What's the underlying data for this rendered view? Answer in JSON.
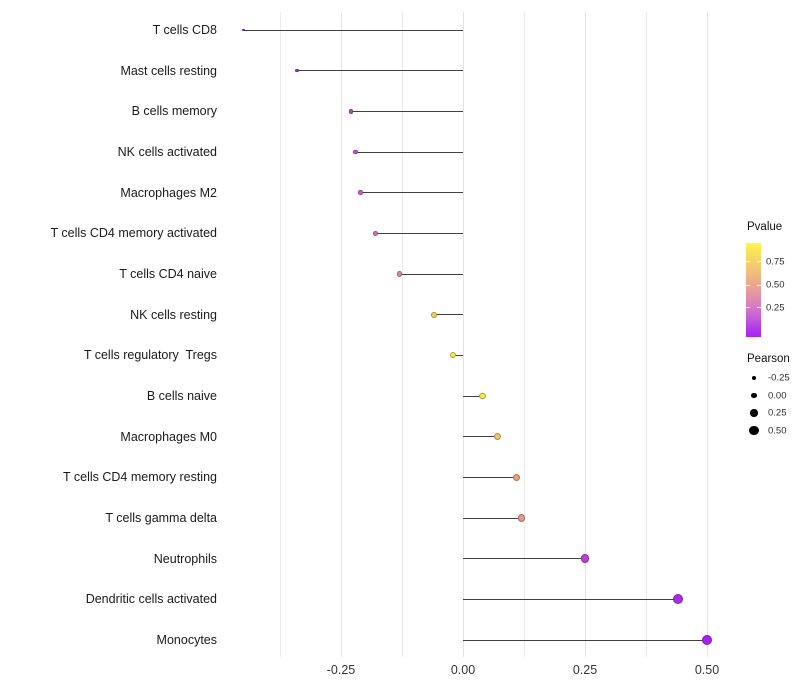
{
  "chart_data": {
    "type": "lollipop",
    "title": "",
    "xlabel": "",
    "ylabel": "",
    "xlim": [
      -0.495,
      0.553
    ],
    "grid": "vertical-only",
    "x_ticks": [
      {
        "value": -0.25,
        "label": "-0.25"
      },
      {
        "value": 0.0,
        "label": "0.00"
      },
      {
        "value": 0.25,
        "label": "0.25"
      },
      {
        "value": 0.5,
        "label": "0.50"
      }
    ],
    "minor_grid_values": [
      -0.375,
      -0.125,
      0.125,
      0.375
    ],
    "points": [
      {
        "label": "T cells CD8",
        "pearson": -0.45,
        "color": "#8c25c8"
      },
      {
        "label": "Mast cells resting",
        "pearson": -0.34,
        "color": "#9d2cd8"
      },
      {
        "label": "B cells memory",
        "pearson": -0.23,
        "color": "#b647ce"
      },
      {
        "label": "NK cells activated",
        "pearson": -0.22,
        "color": "#c156ca"
      },
      {
        "label": "Macrophages M2",
        "pearson": -0.21,
        "color": "#c55fc6"
      },
      {
        "label": "T cells CD4 memory activated",
        "pearson": -0.18,
        "color": "#cd73b9"
      },
      {
        "label": "T cells CD4 naive",
        "pearson": -0.13,
        "color": "#dc8f88"
      },
      {
        "label": "NK cells resting",
        "pearson": -0.06,
        "color": "#edd63f"
      },
      {
        "label": "T cells regulatory  Tregs",
        "pearson": -0.02,
        "color": "#f6ec33"
      },
      {
        "label": "B cells naive",
        "pearson": 0.04,
        "color": "#f6ec33"
      },
      {
        "label": "Macrophages M0",
        "pearson": 0.07,
        "color": "#f1c95a"
      },
      {
        "label": "T cells CD4 memory resting",
        "pearson": 0.11,
        "color": "#eba571"
      },
      {
        "label": "T cells gamma delta",
        "pearson": 0.12,
        "color": "#e59b7e"
      },
      {
        "label": "Neutrophils",
        "pearson": 0.25,
        "color": "#bb41d2"
      },
      {
        "label": "Dendritic cells activated",
        "pearson": 0.44,
        "color": "#aa2be6"
      },
      {
        "label": "Monocytes",
        "pearson": 0.5,
        "color": "#a522f0"
      }
    ],
    "legend_pvalue": {
      "title": "Pvalue",
      "gradient_top_color": "#fcf64c",
      "gradient_bottom_color": "#a424f2",
      "ticks": [
        {
          "label": "0.75",
          "frac_from_top": 0.202
        },
        {
          "label": "0.50",
          "frac_from_top": 0.447
        },
        {
          "label": "0.25",
          "frac_from_top": 0.691
        }
      ]
    },
    "legend_pearson": {
      "title": "Pearson",
      "entries": [
        {
          "label": "-0.25",
          "value": -0.25
        },
        {
          "label": "0.00",
          "value": 0.0
        },
        {
          "label": "0.25",
          "value": 0.25
        },
        {
          "label": "0.50",
          "value": 0.5
        }
      ]
    }
  }
}
